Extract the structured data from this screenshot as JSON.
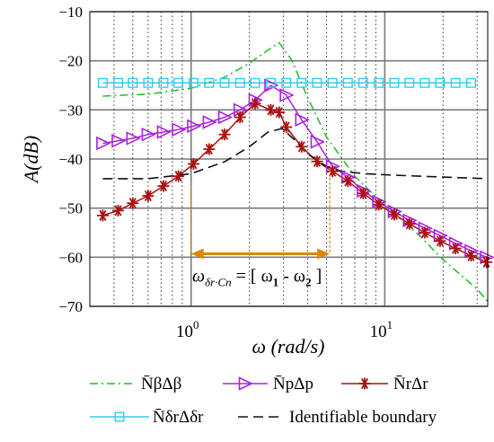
{
  "chart_data": {
    "type": "line",
    "x_scale": "log",
    "xlim": [
      0.3,
      34
    ],
    "ylim": [
      -70,
      -10
    ],
    "grid": true,
    "legend_placement": "bottom",
    "xlabel": "ω (rad/s)",
    "ylabel": "A(dB)",
    "x_tick_labels": [
      {
        "value": 1,
        "base": "10",
        "exp": "0"
      },
      {
        "value": 10,
        "base": "10",
        "exp": "1"
      }
    ],
    "y_ticks": [
      -10,
      -20,
      -30,
      -40,
      -50,
      -60,
      -70
    ],
    "y_tick_labels": [
      "−10",
      "−20",
      "−30",
      "−40",
      "−50",
      "−60",
      "−70"
    ],
    "series": [
      {
        "name": "N̄βΔβ",
        "color": "#22bb22",
        "style": "dashdot",
        "marker": "none",
        "x": [
          0.35,
          0.6,
          1.0,
          1.5,
          2.0,
          2.5,
          2.85,
          3.3,
          4.0,
          5.0,
          7.0,
          10.0,
          15.0,
          20.0,
          30.0,
          34.0
        ],
        "y": [
          -27.2,
          -26.8,
          -25.6,
          -23.3,
          -20.5,
          -17.8,
          -16.3,
          -19.8,
          -27.5,
          -35.5,
          -43.5,
          -49.5,
          -55.5,
          -60.5,
          -66.5,
          -69.0
        ]
      },
      {
        "name": "N̄pΔp",
        "color": "#aa22dd",
        "style": "solid",
        "marker": "triangle-right",
        "x": [
          0.35,
          0.42,
          0.5,
          0.6,
          0.72,
          0.86,
          1.03,
          1.24,
          1.49,
          1.79,
          2.14,
          2.58,
          3.1,
          3.72,
          4.47,
          5.37,
          6.45,
          7.74,
          9.3,
          11.2,
          13.4,
          16.1,
          19.3,
          23.2,
          27.9,
          33.5
        ],
        "y": [
          -36.8,
          -36.3,
          -35.8,
          -35.0,
          -34.5,
          -34.0,
          -33.3,
          -32.5,
          -31.5,
          -30.0,
          -28.0,
          -25.0,
          -27.0,
          -32.0,
          -36.5,
          -41.5,
          -43.7,
          -46.5,
          -48.7,
          -50.7,
          -52.5,
          -54.1,
          -55.6,
          -57.2,
          -58.7,
          -60.0
        ]
      },
      {
        "name": "N̄rΔr",
        "color": "#aa1111",
        "style": "solid",
        "marker": "star",
        "x": [
          0.35,
          0.42,
          0.5,
          0.6,
          0.72,
          0.86,
          1.03,
          1.24,
          1.49,
          1.79,
          2.14,
          2.58,
          2.85,
          3.1,
          3.72,
          4.47,
          5.37,
          6.45,
          7.74,
          9.3,
          11.2,
          13.4,
          16.1,
          19.3,
          23.2,
          27.9,
          33.5
        ],
        "y": [
          -51.5,
          -50.5,
          -49.0,
          -47.5,
          -45.5,
          -43.5,
          -41.0,
          -38.0,
          -35.0,
          -31.5,
          -28.7,
          -30.0,
          -30.5,
          -33.5,
          -37.5,
          -40.5,
          -42.5,
          -44.5,
          -47.0,
          -49.3,
          -51.3,
          -53.2,
          -55.0,
          -56.7,
          -58.2,
          -59.7,
          -61.0
        ]
      },
      {
        "name": "N̄δrΔδr",
        "color": "#33ccee",
        "style": "solid",
        "marker": "square",
        "x": [
          0.35,
          0.42,
          0.5,
          0.6,
          0.72,
          0.86,
          1.03,
          1.24,
          1.49,
          1.79,
          2.14,
          2.58,
          3.1,
          3.72,
          4.47,
          5.37,
          6.45,
          7.74,
          9.3,
          11.2,
          13.4,
          16.1,
          19.3,
          23.2,
          27.9
        ],
        "y": [
          -24.5,
          -24.5,
          -24.5,
          -24.5,
          -24.5,
          -24.5,
          -24.5,
          -24.5,
          -24.5,
          -24.5,
          -24.5,
          -24.5,
          -24.5,
          -24.5,
          -24.5,
          -24.5,
          -24.5,
          -24.5,
          -24.5,
          -24.5,
          -24.5,
          -24.5,
          -24.5,
          -24.5,
          -24.5
        ]
      },
      {
        "name": "Identifiable boundary",
        "color": "#111111",
        "style": "dashed",
        "marker": "none",
        "x": [
          0.35,
          0.6,
          1.0,
          1.5,
          2.0,
          2.5,
          2.95,
          3.4,
          4.0,
          5.0,
          6.0,
          8.0,
          10.0,
          15.0,
          34.0
        ],
        "y": [
          -44.0,
          -44.0,
          -43.0,
          -40.5,
          -37.5,
          -34.5,
          -33.8,
          -36.0,
          -39.0,
          -41.5,
          -42.5,
          -43.0,
          -43.2,
          -43.5,
          -44.0
        ]
      }
    ],
    "annotation": {
      "text_main": "ω",
      "text_sub": "δr·Cn",
      "text_rest": " = [ ω",
      "text_sub1": "1",
      "text_mid": " - ω",
      "text_sub2": "2",
      "text_end": " ]",
      "x_start": 1.0,
      "x_end": 5.2,
      "arrow_y": -59.3,
      "arrow_color": "#dd8800"
    }
  }
}
